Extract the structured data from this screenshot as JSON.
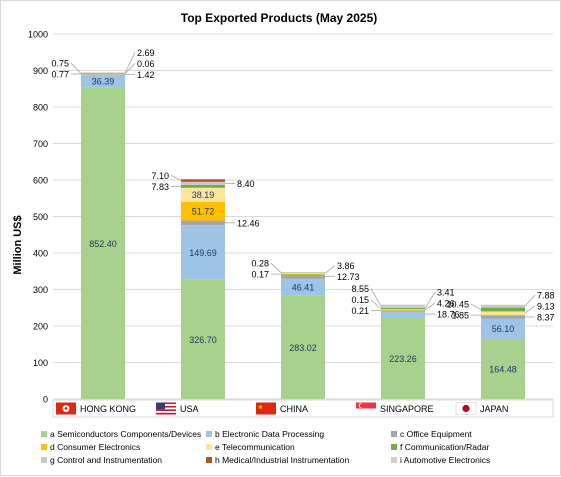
{
  "chart_data": {
    "type": "bar",
    "stacked": true,
    "title": "Top Exported Products (May 2025)",
    "ylabel": "Million US$",
    "xlabel": "",
    "ylim": [
      0,
      1000
    ],
    "yticks": [
      "0",
      "100",
      "200",
      "300",
      "400",
      "500",
      "600",
      "700",
      "800",
      "900",
      "1000"
    ],
    "grid": true,
    "legend_position": "bottom",
    "categories": [
      "HONG KONG",
      "USA",
      "CHINA",
      "SINGAPORE",
      "JAPAN"
    ],
    "country_flags": [
      "hong-kong-flag",
      "usa-flag",
      "china-flag",
      "singapore-flag",
      "japan-flag"
    ],
    "series": [
      {
        "name": "a Semiconductors Components/Devices",
        "color": "#a9d18e",
        "values": [
          852.4,
          326.7,
          283.02,
          223.26,
          164.48
        ]
      },
      {
        "name": "b Electronic Data Processing",
        "color": "#9dc3e6",
        "values": [
          36.39,
          149.69,
          46.41,
          18.76,
          56.1
        ]
      },
      {
        "name": "c Office Equipment",
        "color": "#a5a5a5",
        "values": [
          1.42,
          12.46,
          12.73,
          0.21,
          8.37
        ]
      },
      {
        "name": "d Consumer Electronics",
        "color": "#ffc000",
        "values": [
          0.77,
          51.72,
          0.17,
          4.26,
          1.85
        ]
      },
      {
        "name": "e Telecommunication",
        "color": "#ffe699",
        "values": [
          0.06,
          38.19,
          3.86,
          0.15,
          9.13
        ]
      },
      {
        "name": "f Communication/Radar",
        "color": "#70ad47",
        "values": [
          0.75,
          7.83,
          0.28,
          3.41,
          10.45
        ]
      },
      {
        "name": "g Control and Instrumentation",
        "color": "#c9c9c9",
        "values": [
          2.69,
          8.4,
          0,
          8.55,
          7.88
        ]
      },
      {
        "name": "h Medical/Industrial Instrumentation",
        "color": "#a9581b",
        "values": [
          0,
          7.1,
          0,
          0,
          0
        ]
      },
      {
        "name": "i Automotive Electronics",
        "color": "#d0cece",
        "values": [
          0,
          0,
          0,
          0,
          0
        ]
      }
    ],
    "data_labels": [
      [
        "852.40",
        "36.39",
        "1.42",
        "0.77",
        "0.06",
        "0.75",
        "2.69"
      ],
      [
        "326.70",
        "149.69",
        "12.46",
        "51.72",
        "38.19",
        "7.83",
        "8.40",
        "7.10"
      ],
      [
        "283.02",
        "46.41",
        "12.73",
        "0.17",
        "3.86",
        "0.28"
      ],
      [
        "223.26",
        "18.76",
        "0.21",
        "4.26",
        "0.15",
        "3.41",
        "8.55"
      ],
      [
        "164.48",
        "56.10",
        "8.37",
        "1.85",
        "9.13",
        "10.45",
        "7.88"
      ]
    ],
    "label_color": "#1f3864"
  }
}
